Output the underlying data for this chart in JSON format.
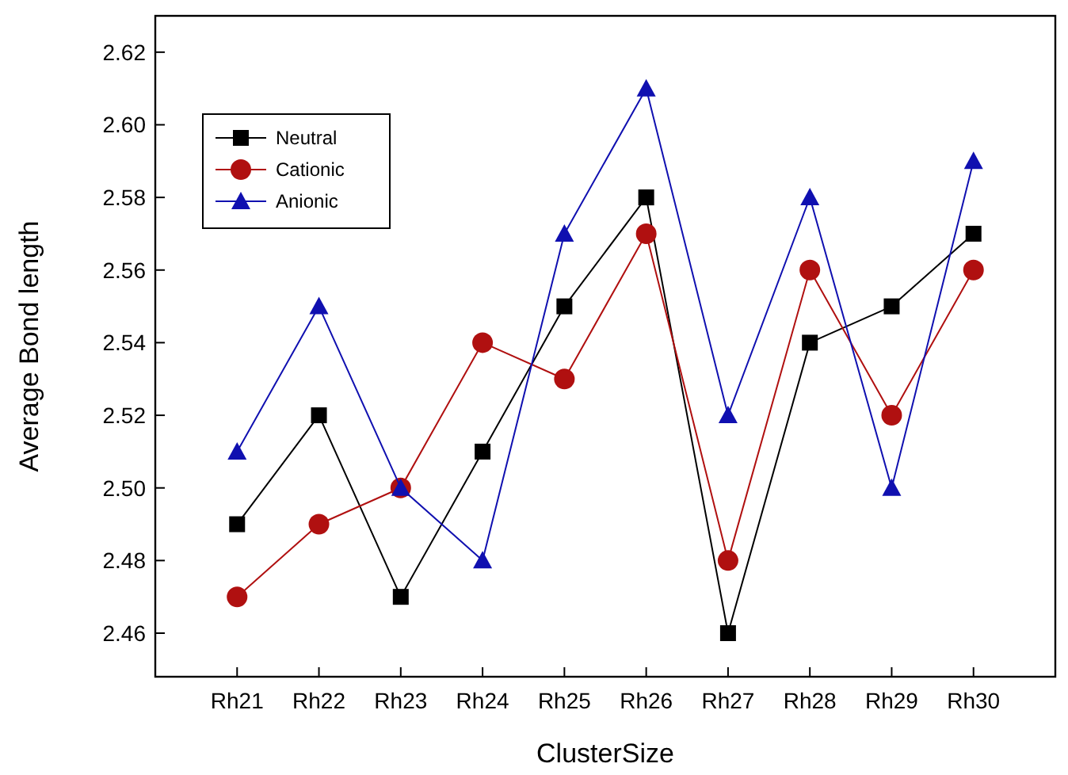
{
  "chart_data": {
    "type": "line",
    "xlabel": "ClusterSize",
    "ylabel": "Average Bond length",
    "categories": [
      "Rh21",
      "Rh22",
      "Rh23",
      "Rh24",
      "Rh25",
      "Rh26",
      "Rh27",
      "Rh28",
      "Rh29",
      "Rh30"
    ],
    "series": [
      {
        "name": "Neutral",
        "color": "#000000",
        "marker": "square",
        "values": [
          2.49,
          2.52,
          2.47,
          2.51,
          2.55,
          2.58,
          2.46,
          2.54,
          2.55,
          2.57
        ]
      },
      {
        "name": "Cationic",
        "color": "#b01010",
        "marker": "circle",
        "values": [
          2.47,
          2.49,
          2.5,
          2.54,
          2.53,
          2.57,
          2.48,
          2.56,
          2.52,
          2.56
        ]
      },
      {
        "name": "Anionic",
        "color": "#1010b0",
        "marker": "triangle",
        "values": [
          2.51,
          2.55,
          2.5,
          2.48,
          2.57,
          2.61,
          2.52,
          2.58,
          2.5,
          2.59
        ]
      }
    ],
    "ylim": [
      2.448,
      2.63
    ],
    "yticks": [
      2.46,
      2.48,
      {
        "value": 2.5,
        "label": "2.50"
      },
      2.52,
      2.54,
      2.56,
      2.58,
      {
        "value": 2.6,
        "label": "2.60"
      },
      2.62
    ],
    "legend": "top left",
    "grid": false,
    "line_style": "solid"
  }
}
